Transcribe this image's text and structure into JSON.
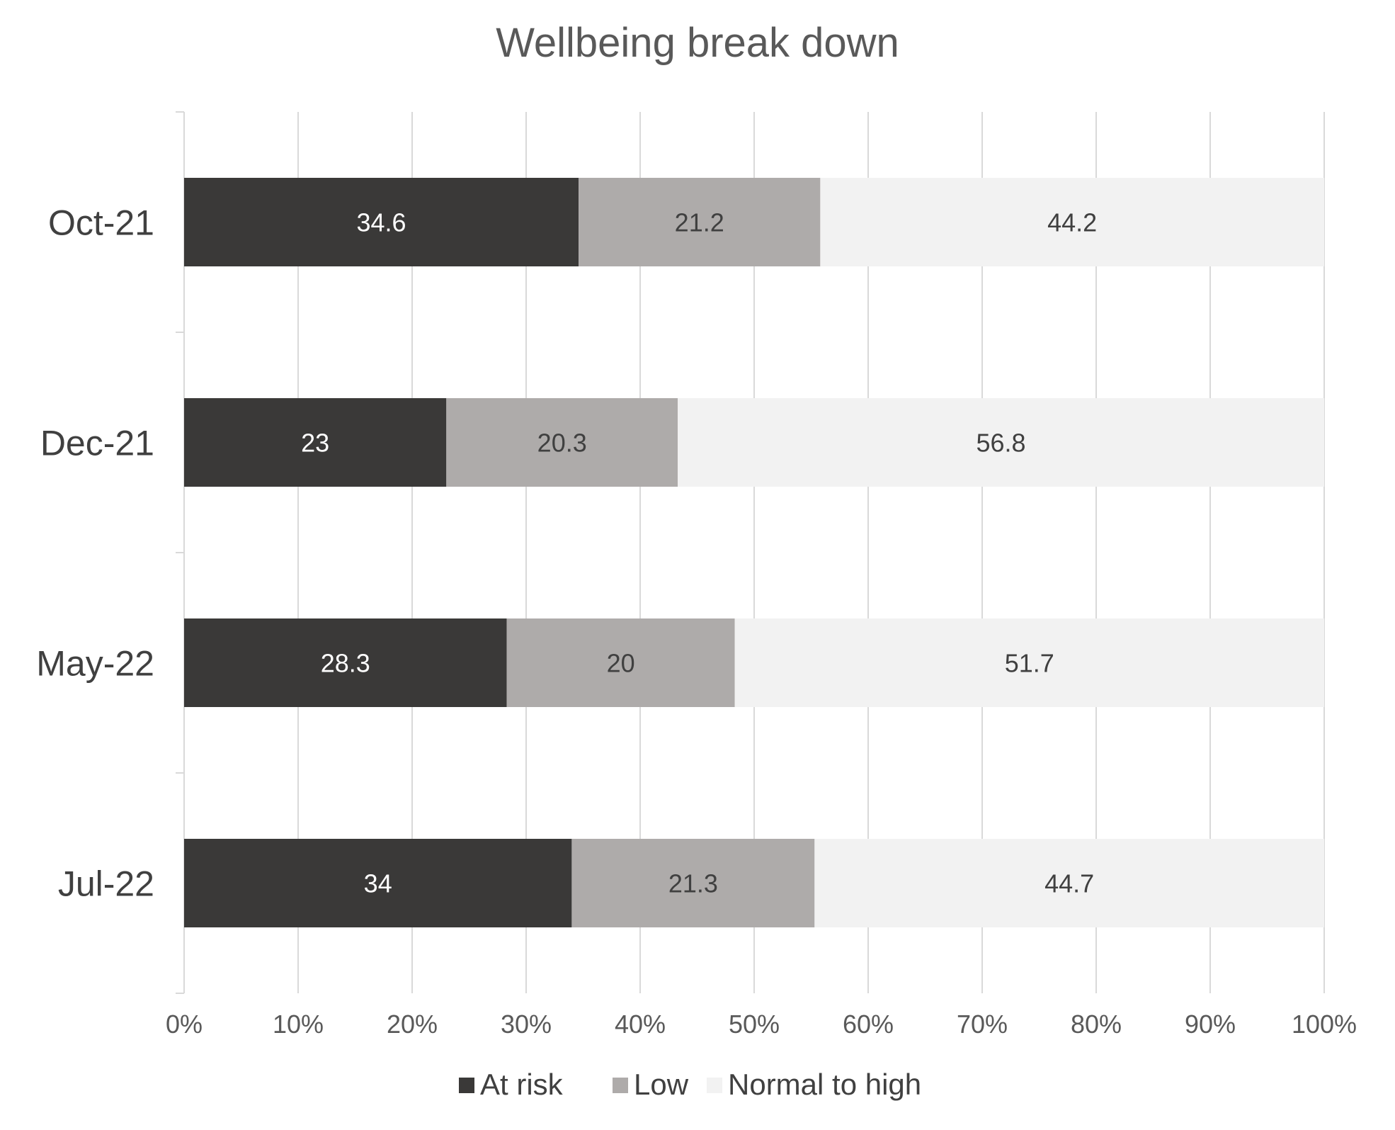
{
  "chart_data": {
    "type": "bar",
    "orientation": "horizontal",
    "stacked": true,
    "title": "Wellbeing break down",
    "categories": [
      "Oct-21",
      "Dec-21",
      "May-22",
      "Jul-22"
    ],
    "series": [
      {
        "name": "At risk",
        "values": [
          34.6,
          23,
          28.3,
          34
        ],
        "color": "#3a3938",
        "label_color": "#ffffff"
      },
      {
        "name": "Low",
        "values": [
          21.2,
          20.3,
          20,
          21.3
        ],
        "color": "#aeabaa",
        "label_color": "#404040"
      },
      {
        "name": "Normal to high",
        "values": [
          44.2,
          56.8,
          51.7,
          44.7
        ],
        "color": "#f2f2f2",
        "label_color": "#404040"
      }
    ],
    "x_ticks": [
      "0%",
      "10%",
      "20%",
      "30%",
      "40%",
      "50%",
      "60%",
      "70%",
      "80%",
      "90%",
      "100%"
    ],
    "xlim": [
      0,
      100
    ],
    "grid": true,
    "legend_position": "bottom",
    "gridline_color": "#d9d9d9"
  }
}
